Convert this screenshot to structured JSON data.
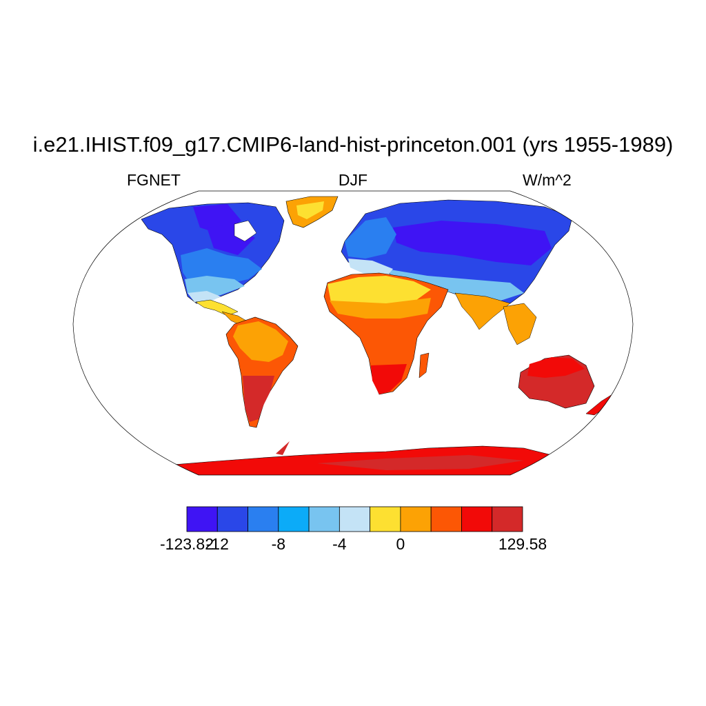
{
  "title": "i.e21.IHIST.f09_g17.CMIP6-land-hist-princeton.001 (yrs 1955-1989)",
  "left_label": "FGNET",
  "center_label": "DJF",
  "right_label": "W/m^2",
  "colorbar": {
    "colors": [
      "#3f14f4",
      "#2a47e8",
      "#2a7ff0",
      "#0cabf8",
      "#78c4f0",
      "#c4e3f6",
      "#fde031",
      "#fca205",
      "#fc5705",
      "#f20a08",
      "#d42929"
    ],
    "tick_labels": [
      "-123.82",
      "-12",
      "-8",
      "-4",
      "0",
      "129.58"
    ]
  }
}
